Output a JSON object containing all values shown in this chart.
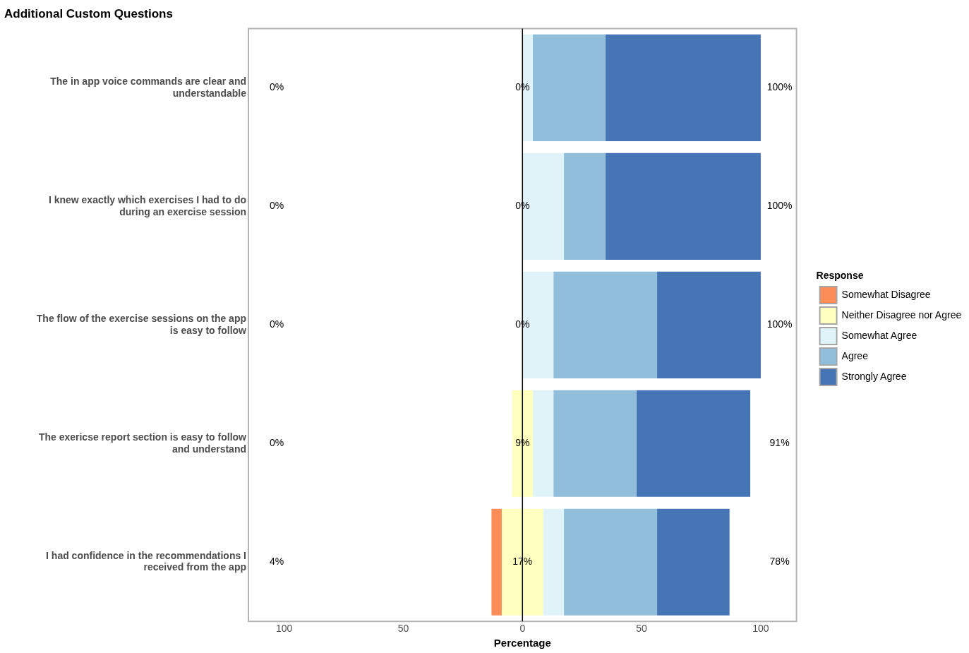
{
  "chart_data": {
    "type": "bar",
    "orientation": "horizontal",
    "title": "Additional Custom Questions",
    "xlabel": "Percentage",
    "legend_title": "Response",
    "legend": "right",
    "grid": false,
    "categories": [
      "The in app voice commands are clear and understandable",
      "I knew exactly which exercises I had to do during an exercise session",
      "The flow of the exercise sessions on the app is easy to follow",
      "The exericse report section is easy to follow and understand",
      "I had confidence in the recommendations I received from the app"
    ],
    "xlim": [
      -115,
      115
    ],
    "xticks": [
      {
        "value": -100,
        "label": "100"
      },
      {
        "value": -50,
        "label": "50"
      },
      0,
      50,
      100
    ],
    "series": [
      {
        "name": "Somewhat Disagree",
        "color": "#fc8d59",
        "base": [
          null,
          null,
          null,
          null,
          -13.0
        ],
        "values": [
          null,
          null,
          null,
          null,
          4.3
        ]
      },
      {
        "name": "Neither Disagree nor Agree",
        "color": "#ffffbf",
        "base": [
          null,
          null,
          null,
          -4.3,
          -8.7
        ],
        "values": [
          null,
          null,
          null,
          8.7,
          17.4
        ]
      },
      {
        "name": "Somewhat Agree",
        "color": "#e0f3f8",
        "base": [
          0,
          0,
          0,
          4.3,
          8.7
        ],
        "values": [
          4.3,
          17.4,
          13.0,
          8.7,
          8.7
        ]
      },
      {
        "name": "Agree",
        "color": "#91bfdb",
        "base": [
          4.3,
          17.4,
          13.0,
          13.0,
          17.4
        ],
        "values": [
          30.5,
          17.4,
          43.5,
          34.8,
          39.1
        ]
      },
      {
        "name": "Strongly Agree",
        "color": "#4575b4",
        "base": [
          34.8,
          34.8,
          56.5,
          47.8,
          56.5
        ],
        "values": [
          65.2,
          65.2,
          43.5,
          47.8,
          30.4
        ]
      }
    ],
    "ref_lines": [
      {
        "axis": "x",
        "value": 0,
        "color": "#000000"
      }
    ],
    "annotations": [
      "0%",
      "0%",
      "0%",
      "0%",
      "4%",
      "0%",
      "0%",
      "0%",
      "9%",
      "17%",
      "100%",
      "100%",
      "100%",
      "91%",
      "78%"
    ]
  }
}
